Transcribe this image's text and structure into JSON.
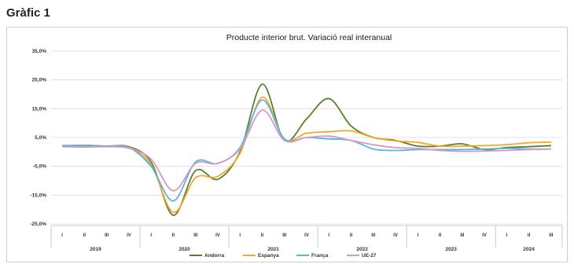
{
  "page": {
    "heading": "Gràfic 1"
  },
  "chart_data": {
    "type": "line",
    "title": "Producte interior brut. Variació real interanual",
    "xlabel": "",
    "ylabel": "",
    "ylim": [
      -25,
      35
    ],
    "yticks": [
      35,
      25,
      15,
      5,
      -5,
      -15,
      -25
    ],
    "ytick_labels": [
      "35,0%",
      "25,0%",
      "15,0%",
      "5,0%",
      "-5,0%",
      "-15,0%",
      "-25,0%"
    ],
    "grid": true,
    "legend_position": "bottom",
    "quarters": [
      "I",
      "II",
      "III",
      "IV",
      "I",
      "II",
      "III",
      "IV",
      "I",
      "II",
      "III",
      "IV",
      "I",
      "II",
      "III",
      "IV",
      "I",
      "II",
      "III",
      "IV",
      "I",
      "II",
      "III"
    ],
    "years": [
      {
        "label": "2019",
        "quarters": 4
      },
      {
        "label": "2020",
        "quarters": 4
      },
      {
        "label": "2021",
        "quarters": 4
      },
      {
        "label": "2022",
        "quarters": 4
      },
      {
        "label": "2023",
        "quarters": 4
      },
      {
        "label": "2024",
        "quarters": 3
      }
    ],
    "series": [
      {
        "name": "Andorra",
        "color": "#5b7f2a",
        "values": [
          2.0,
          2.3,
          2.0,
          1.8,
          -3.5,
          -22.0,
          -6.5,
          -9.5,
          0.0,
          23.5,
          4.0,
          11.5,
          18.5,
          9.0,
          5.0,
          4.0,
          2.0,
          2.0,
          2.8,
          0.8,
          1.5,
          1.8,
          2.2
        ]
      },
      {
        "name": "Espanya",
        "color": "#f0a830",
        "values": [
          2.1,
          2.1,
          1.9,
          1.6,
          -4.5,
          -21.0,
          -9.0,
          -8.5,
          -0.5,
          19.0,
          4.5,
          6.5,
          7.0,
          7.3,
          5.0,
          3.8,
          3.3,
          2.0,
          2.0,
          2.2,
          2.5,
          3.2,
          3.4
        ]
      },
      {
        "name": "França",
        "color": "#5bb5e0",
        "values": [
          2.2,
          2.3,
          1.9,
          1.5,
          -5.0,
          -17.0,
          -3.5,
          -4.0,
          1.5,
          18.0,
          4.5,
          5.0,
          4.5,
          4.0,
          1.0,
          0.5,
          0.8,
          0.8,
          0.8,
          1.0,
          1.2,
          1.0,
          1.0
        ]
      },
      {
        "name": "UE-27",
        "color": "#d49ac2",
        "values": [
          1.8,
          1.7,
          1.8,
          1.3,
          -2.5,
          -13.5,
          -4.0,
          -4.0,
          1.0,
          14.5,
          4.0,
          5.0,
          5.5,
          4.0,
          2.5,
          1.5,
          1.2,
          0.5,
          0.2,
          0.3,
          0.5,
          0.8,
          1.0
        ]
      }
    ]
  }
}
